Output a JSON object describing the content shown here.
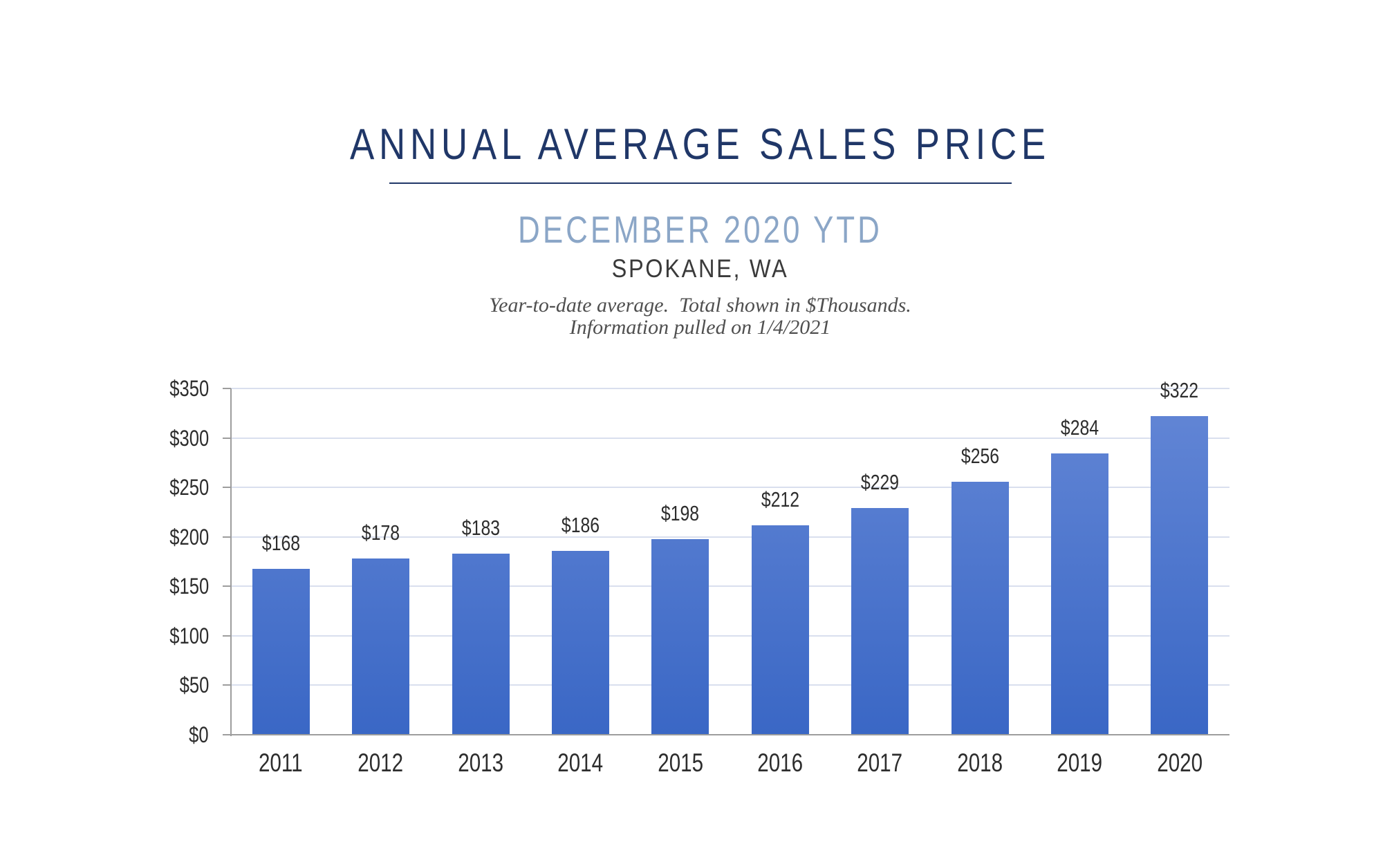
{
  "header": {
    "title": "ANNUAL AVERAGE SALES PRICE",
    "subtitle": "DECEMBER 2020 YTD",
    "location": "SPOKANE, WA",
    "note_line1": "Year-to-date average.  Total shown in $Thousands.",
    "note_line2": "Information pulled on 1/4/2021"
  },
  "colors": {
    "title": "#203768",
    "underline": "#203768",
    "subtitle": "#8ba6c7",
    "location": "#3a3a3a",
    "note": "#4f4f4f",
    "axis": "#9d9d9d",
    "gridline": "#d9dfee",
    "tick_label": "#2d2d2d",
    "bar_top": "#6487d6",
    "bar_bottom": "#3a67c5"
  },
  "chart_data": {
    "type": "bar",
    "title": "ANNUAL AVERAGE SALES PRICE",
    "subtitle": "DECEMBER 2020 YTD",
    "location": "SPOKANE, WA",
    "footnote": "Year-to-date average. Total shown in $Thousands. Information pulled on 1/4/2021",
    "categories": [
      "2011",
      "2012",
      "2013",
      "2014",
      "2015",
      "2016",
      "2017",
      "2018",
      "2019",
      "2020"
    ],
    "values": [
      168,
      178,
      183,
      186,
      198,
      212,
      229,
      256,
      284,
      322
    ],
    "value_labels": [
      "$168",
      "$178",
      "$183",
      "$186",
      "$198",
      "$212",
      "$229",
      "$256",
      "$284",
      "$322"
    ],
    "units": "$Thousands",
    "xlabel": "",
    "ylabel": "",
    "ylim": [
      0,
      350
    ],
    "y_tick_step": 50,
    "y_tick_labels": [
      "$0",
      "$50",
      "$100",
      "$150",
      "$200",
      "$250",
      "$300",
      "$350"
    ],
    "grid": true,
    "legend": "none"
  }
}
